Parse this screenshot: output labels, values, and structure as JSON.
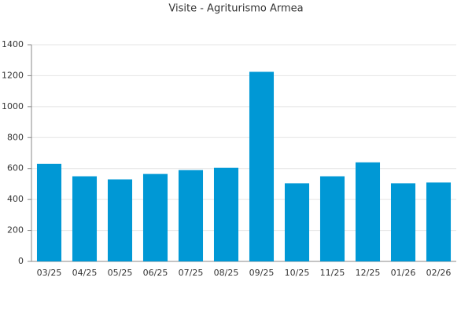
{
  "chart_data": {
    "type": "bar",
    "title": "Visite - Agriturismo Armea",
    "categories": [
      "03/25",
      "04/25",
      "05/25",
      "06/25",
      "07/25",
      "08/25",
      "09/25",
      "10/25",
      "11/25",
      "12/25",
      "01/26",
      "02/26"
    ],
    "values": [
      630,
      550,
      530,
      565,
      590,
      605,
      1225,
      505,
      550,
      640,
      505,
      510
    ],
    "color": "#0098d5",
    "ylim": [
      0,
      1400
    ],
    "yticks": [
      0,
      200,
      400,
      600,
      800,
      1000,
      1200,
      1400
    ],
    "grid": true
  }
}
